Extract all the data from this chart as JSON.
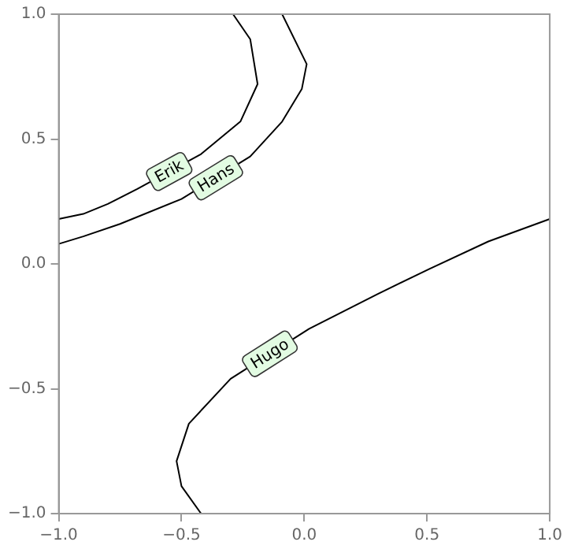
{
  "chart_data": {
    "type": "line",
    "xlim": [
      -1,
      1
    ],
    "ylim": [
      -1,
      1
    ],
    "xticks": [
      {
        "value": -1,
        "label": "−1.0"
      },
      {
        "value": -0.5,
        "label": "−0.5"
      },
      {
        "value": 0,
        "label": "0.0"
      },
      {
        "value": 0.5,
        "label": "0.5"
      },
      {
        "value": 1,
        "label": "1.0"
      }
    ],
    "yticks": [
      {
        "value": -1,
        "label": "−1.0"
      },
      {
        "value": -0.5,
        "label": "−0.5"
      },
      {
        "value": 0,
        "label": "0.0"
      },
      {
        "value": 0.5,
        "label": "0.5"
      },
      {
        "value": 1,
        "label": "1.0"
      }
    ],
    "grid": false,
    "legend": false,
    "marker": "none",
    "line_style": "solid",
    "series": [
      {
        "name": "Erik",
        "color": "#000000",
        "x": [
          -1,
          -0.9,
          -0.8,
          -0.68,
          -0.42,
          -0.26,
          -0.19,
          -0.22,
          -0.29
        ],
        "values": [
          0.18,
          0.2,
          0.24,
          0.3,
          0.44,
          0.57,
          0.72,
          0.9,
          1.0
        ]
      },
      {
        "name": "Hans",
        "color": "#000000",
        "x": [
          -1,
          -0.9,
          -0.75,
          -0.5,
          -0.22,
          -0.09,
          -0.01,
          0.01,
          -0.09
        ],
        "values": [
          0.08,
          0.11,
          0.16,
          0.26,
          0.43,
          0.57,
          0.7,
          0.8,
          1.0
        ]
      },
      {
        "name": "Hugo",
        "color": "#000000",
        "x": [
          -0.42,
          -0.5,
          -0.52,
          -0.47,
          -0.3,
          0.02,
          0.3,
          0.51,
          0.75,
          1.0
        ],
        "values": [
          -1.0,
          -0.89,
          -0.79,
          -0.64,
          -0.46,
          -0.26,
          -0.12,
          -0.02,
          0.09,
          0.18
        ]
      }
    ]
  }
}
